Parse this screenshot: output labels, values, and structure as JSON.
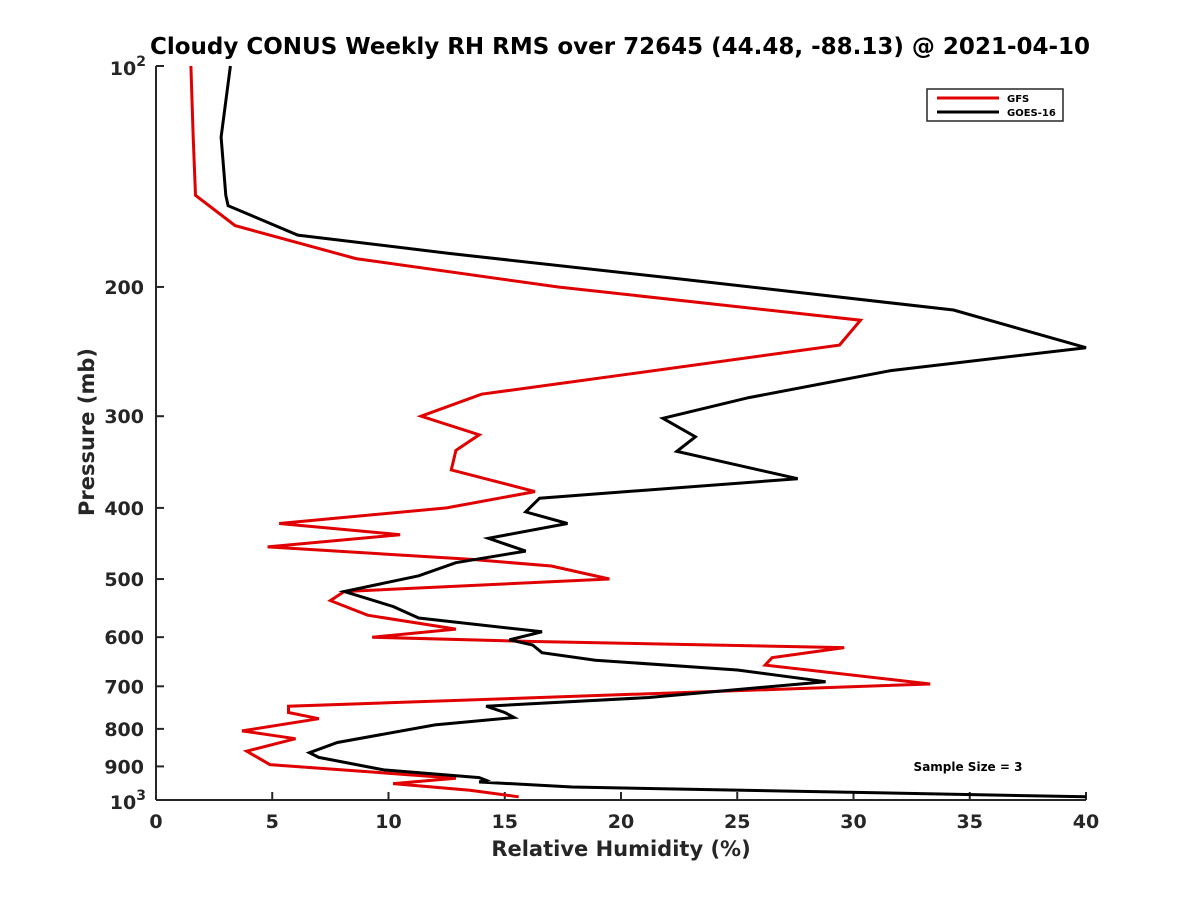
{
  "chart_data": {
    "type": "line",
    "title": "Cloudy CONUS Weekly RH RMS over 72645 (44.48, -88.13) @ 2021-04-10",
    "xlabel": "Relative Humidity (%)",
    "ylabel": "Pressure (mb)",
    "xlim": [
      0,
      40
    ],
    "ylim": [
      100,
      1000
    ],
    "yscale": "log",
    "y_reversed": true,
    "x_ticks": [
      0,
      5,
      10,
      15,
      20,
      25,
      30,
      35,
      40
    ],
    "x_tick_labels": [
      "0",
      "5",
      "10",
      "15",
      "20",
      "25",
      "30",
      "35",
      "40"
    ],
    "y_ticks": [
      200,
      300,
      400,
      500,
      600,
      700,
      800,
      900
    ],
    "y_tick_labels": [
      "200",
      "300",
      "400",
      "500",
      "600",
      "700",
      "800",
      "900"
    ],
    "y_decade_ticks": [
      {
        "value": 100,
        "base": "10",
        "exp": "2"
      },
      {
        "value": 1000,
        "base": "10",
        "exp": "3"
      }
    ],
    "grid": false,
    "legend_position": "top-right",
    "annotation": "Sample Size = 3",
    "series": [
      {
        "name": "GFS",
        "color": "#e00000",
        "points": [
          [
            1.5,
            100
          ],
          [
            1.6,
            125
          ],
          [
            1.7,
            150
          ],
          [
            3.4,
            165
          ],
          [
            8.6,
            183
          ],
          [
            17.3,
            200
          ],
          [
            30.3,
            222
          ],
          [
            29.4,
            240
          ],
          [
            20.3,
            263
          ],
          [
            14.0,
            280
          ],
          [
            11.4,
            300
          ],
          [
            13.9,
            318
          ],
          [
            12.9,
            334
          ],
          [
            12.7,
            355
          ],
          [
            16.3,
            380
          ],
          [
            12.5,
            400
          ],
          [
            5.3,
            420
          ],
          [
            10.5,
            435
          ],
          [
            4.8,
            452
          ],
          [
            13.5,
            470
          ],
          [
            17.0,
            480
          ],
          [
            19.5,
            500
          ],
          [
            8.1,
            520
          ],
          [
            7.5,
            535
          ],
          [
            9.1,
            560
          ],
          [
            12.9,
            585
          ],
          [
            9.3,
            600
          ],
          [
            16.0,
            608
          ],
          [
            29.6,
            620
          ],
          [
            26.5,
            640
          ],
          [
            26.2,
            655
          ],
          [
            33.3,
            695
          ],
          [
            5.7,
            745
          ],
          [
            5.7,
            760
          ],
          [
            7.0,
            775
          ],
          [
            3.7,
            805
          ],
          [
            6.0,
            825
          ],
          [
            3.9,
            858
          ],
          [
            4.9,
            895
          ],
          [
            12.9,
            934
          ],
          [
            10.2,
            950
          ],
          [
            13.5,
            970
          ],
          [
            15.6,
            990
          ]
        ]
      },
      {
        "name": "GOES-16",
        "color": "#000000",
        "points": [
          [
            3.2,
            100
          ],
          [
            2.8,
            125
          ],
          [
            3.0,
            150
          ],
          [
            3.1,
            155
          ],
          [
            6.1,
            170
          ],
          [
            12.6,
            180
          ],
          [
            22.5,
            195
          ],
          [
            34.3,
            215
          ],
          [
            40.0,
            242
          ],
          [
            31.6,
            260
          ],
          [
            25.5,
            283
          ],
          [
            21.8,
            302
          ],
          [
            23.2,
            320
          ],
          [
            22.4,
            335
          ],
          [
            27.6,
            365
          ],
          [
            16.5,
            388
          ],
          [
            15.9,
            405
          ],
          [
            17.7,
            420
          ],
          [
            14.3,
            440
          ],
          [
            15.9,
            458
          ],
          [
            12.9,
            475
          ],
          [
            11.3,
            495
          ],
          [
            8.1,
            520
          ],
          [
            10.2,
            545
          ],
          [
            11.3,
            565
          ],
          [
            16.6,
            590
          ],
          [
            15.2,
            605
          ],
          [
            16.2,
            615
          ],
          [
            16.6,
            630
          ],
          [
            18.9,
            645
          ],
          [
            25.0,
            665
          ],
          [
            28.8,
            690
          ],
          [
            21.2,
            725
          ],
          [
            14.2,
            745
          ],
          [
            15.0,
            760
          ],
          [
            15.4,
            772
          ],
          [
            12.0,
            790
          ],
          [
            7.8,
            835
          ],
          [
            6.6,
            862
          ],
          [
            7.0,
            875
          ],
          [
            9.8,
            910
          ],
          [
            13.9,
            932
          ],
          [
            14.2,
            940
          ],
          [
            13.9,
            945
          ],
          [
            17.9,
            960
          ],
          [
            40.0,
            990
          ]
        ]
      }
    ]
  }
}
